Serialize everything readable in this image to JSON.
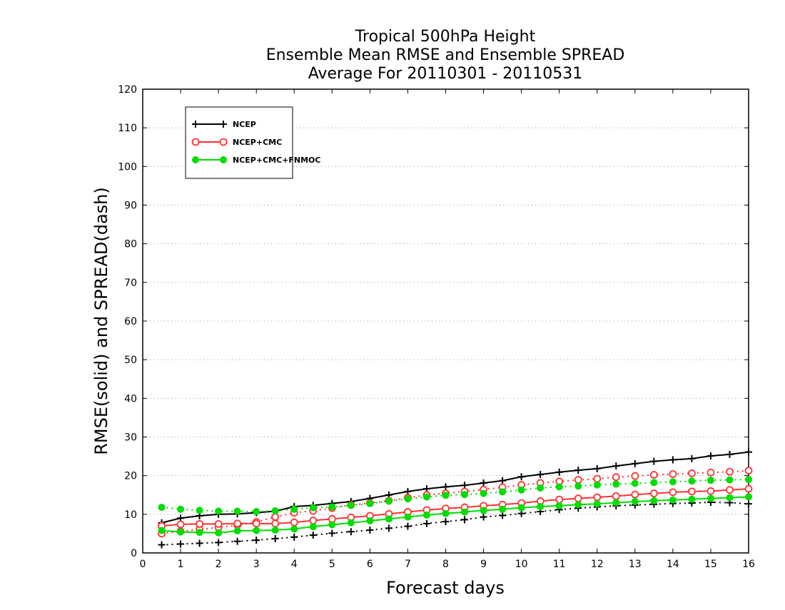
{
  "chart_data": {
    "type": "line",
    "title": [
      "Tropical 500hPa Height",
      "Ensemble Mean RMSE and Ensemble SPREAD",
      "Average For 20110301 - 20110531"
    ],
    "xlabel": "Forecast days",
    "ylabel": "RMSE(solid) and SPREAD(dash)",
    "xlim": [
      0,
      16
    ],
    "ylim": [
      0,
      120
    ],
    "xticks": [
      0,
      1,
      2,
      3,
      4,
      5,
      6,
      7,
      8,
      9,
      10,
      11,
      12,
      13,
      14,
      15,
      16
    ],
    "yticks": [
      0,
      10,
      20,
      30,
      40,
      50,
      60,
      70,
      80,
      90,
      100,
      110,
      120
    ],
    "grid": "horizontal dotted",
    "legend_position": "top-left",
    "x": [
      0.5,
      1,
      1.5,
      2,
      2.5,
      3,
      3.5,
      4,
      4.5,
      5,
      5.5,
      6,
      6.5,
      7,
      7.5,
      8,
      8.5,
      9,
      9.5,
      10,
      10.5,
      11,
      11.5,
      12,
      12.5,
      13,
      13.5,
      14,
      14.5,
      15,
      15.5,
      16
    ],
    "series": [
      {
        "name": "NCEP",
        "color": "#000000",
        "marker": "plus",
        "rmse": [
          7.8,
          9.0,
          9.6,
          10.0,
          10.1,
          10.4,
          10.8,
          12.0,
          12.3,
          12.8,
          13.3,
          14.1,
          15.0,
          15.9,
          16.6,
          17.1,
          17.5,
          18.1,
          18.7,
          19.7,
          20.3,
          20.9,
          21.4,
          21.8,
          22.5,
          23.1,
          23.7,
          24.1,
          24.4,
          25.1,
          25.5,
          26.1
        ],
        "spread": [
          2.1,
          2.3,
          2.5,
          2.7,
          3.0,
          3.3,
          3.7,
          4.1,
          4.6,
          5.1,
          5.5,
          5.9,
          6.4,
          6.9,
          7.6,
          8.1,
          8.6,
          9.3,
          9.7,
          10.2,
          10.7,
          11.2,
          11.6,
          11.9,
          12.2,
          12.4,
          12.6,
          12.8,
          12.9,
          13.1,
          13.0,
          12.7
        ]
      },
      {
        "name": "NCEP+CMC",
        "color": "#ff3333",
        "marker": "open-circle",
        "rmse": [
          7.0,
          7.4,
          7.5,
          7.5,
          7.6,
          7.6,
          7.6,
          7.9,
          8.4,
          8.8,
          9.2,
          9.6,
          10.1,
          10.6,
          11.1,
          11.5,
          11.8,
          12.2,
          12.5,
          12.9,
          13.4,
          13.8,
          14.1,
          14.4,
          14.7,
          15.1,
          15.4,
          15.7,
          15.9,
          16.0,
          16.3,
          16.6
        ],
        "spread": [
          5.0,
          5.6,
          6.1,
          6.6,
          7.2,
          8.0,
          9.3,
          10.4,
          10.9,
          11.6,
          12.4,
          12.9,
          13.5,
          14.3,
          15.0,
          15.4,
          15.9,
          16.4,
          17.0,
          17.6,
          18.1,
          18.5,
          18.9,
          19.2,
          19.6,
          19.9,
          20.2,
          20.4,
          20.6,
          20.8,
          21.0,
          21.3
        ]
      },
      {
        "name": "NCEP+CMC+FNMOC",
        "color": "#00dd00",
        "marker": "filled-circle",
        "rmse": [
          5.8,
          5.4,
          5.3,
          5.2,
          5.7,
          5.8,
          5.9,
          6.2,
          6.8,
          7.3,
          7.8,
          8.3,
          8.8,
          9.3,
          9.8,
          10.2,
          10.6,
          11.0,
          11.3,
          11.7,
          12.0,
          12.2,
          12.5,
          12.7,
          13.0,
          13.3,
          13.5,
          13.7,
          13.9,
          14.1,
          14.3,
          14.5
        ],
        "spread": [
          11.8,
          11.3,
          11.0,
          10.8,
          10.8,
          10.7,
          10.9,
          11.3,
          11.7,
          11.9,
          12.3,
          12.8,
          13.4,
          14.0,
          14.5,
          14.9,
          15.1,
          15.4,
          15.8,
          16.3,
          16.8,
          17.1,
          17.3,
          17.6,
          17.8,
          18.0,
          18.2,
          18.4,
          18.6,
          18.8,
          18.9,
          19.0
        ]
      }
    ]
  }
}
